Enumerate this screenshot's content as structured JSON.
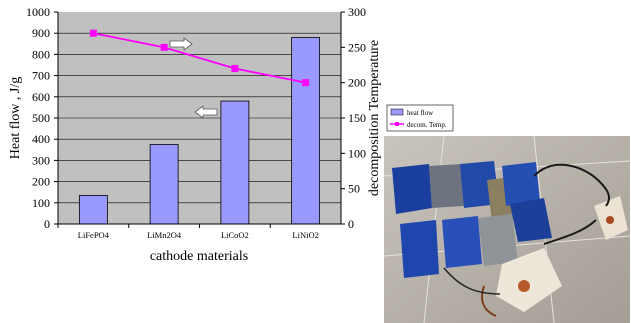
{
  "chart_data": {
    "type": "bar",
    "categories": [
      "LiFePO4",
      "LiMn2O4",
      "LiCoO2",
      "LiNiO2"
    ],
    "series": [
      {
        "name": "heat flow",
        "type": "bar",
        "axis": "left",
        "values": [
          135,
          375,
          580,
          880
        ],
        "color": "#9999ff"
      },
      {
        "name": "decom. Temp.",
        "type": "line",
        "axis": "right",
        "values": [
          270,
          250,
          220,
          200
        ],
        "color": "#ff00ff"
      }
    ],
    "xlabel": "cathode materials",
    "ylabel": "Heat flow , J/g",
    "y2label": "decomposition Temperature",
    "ylim": [
      0,
      1000
    ],
    "y2lim": [
      0,
      300
    ],
    "yticks": [
      "0",
      "100",
      "200",
      "300",
      "400",
      "500",
      "600",
      "700",
      "800",
      "900",
      "1000"
    ],
    "y2ticks": [
      "0",
      "50",
      "100",
      "150",
      "200",
      "250",
      "300"
    ],
    "grid": true,
    "legend_position": "bottom-right, outside plot"
  },
  "photo": {
    "icon": "degraded-battery-pouches-photo"
  }
}
